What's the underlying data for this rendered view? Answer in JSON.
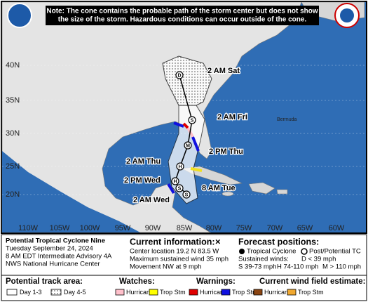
{
  "note": [
    "Note: The cone contains the probable path of the storm center but does not show",
    "the size of the storm. Hazardous conditions can occur outside of the cone."
  ],
  "map": {
    "lat_labels": [
      "40N",
      "35N",
      "30N",
      "25N",
      "20N"
    ],
    "lon_labels": [
      "110W",
      "105W",
      "100W",
      "95W",
      "90W",
      "85W",
      "80W",
      "75W",
      "70W",
      "65W",
      "60W"
    ],
    "places": [
      "Bermuda"
    ],
    "track_labels": [
      "2 AM Sat",
      "2 AM Fri",
      "2 PM Thu",
      "2 AM Thu",
      "2 PM Wed",
      "8 AM Tue",
      "2 AM Wed"
    ],
    "markers": [
      "D",
      "S",
      "M",
      "H",
      "H",
      "S",
      "S"
    ]
  },
  "advisory": [
    "Potential Tropical Cyclone Nine",
    "Tuesday September 24, 2024",
    "8 AM EDT Intermediate Advisory 4A",
    "NWS National Hurricane Center"
  ],
  "current": {
    "heading": "Current information:",
    "symbol": "×",
    "lines": [
      "Center location 19.2 N 83.5 W",
      "Maximum sustained wind 35 mph",
      "Movement NW at 9 mph"
    ]
  },
  "forecast": {
    "heading": "Forecast positions:",
    "types": [
      "Tropical Cyclone",
      "Post/Potential TC"
    ],
    "winds_label": "Sustained winds:",
    "d": "D < 39 mph",
    "classes": [
      "S 39-73 mph",
      "H 74-110 mph",
      "M > 110 mph"
    ]
  },
  "legend": {
    "track": {
      "title": "Potential track area:",
      "items": [
        "Day 1-3",
        "Day 4-5"
      ]
    },
    "watches": {
      "title": "Watches:",
      "items": [
        "Hurricane",
        "Trop Stm"
      ]
    },
    "warnings": {
      "title": "Warnings:",
      "items": [
        "Hurricane",
        "Trop Stm"
      ]
    },
    "wind": {
      "title": "Current wind field estimate:",
      "items": [
        "Hurricane",
        "Trop Stm"
      ]
    }
  }
}
